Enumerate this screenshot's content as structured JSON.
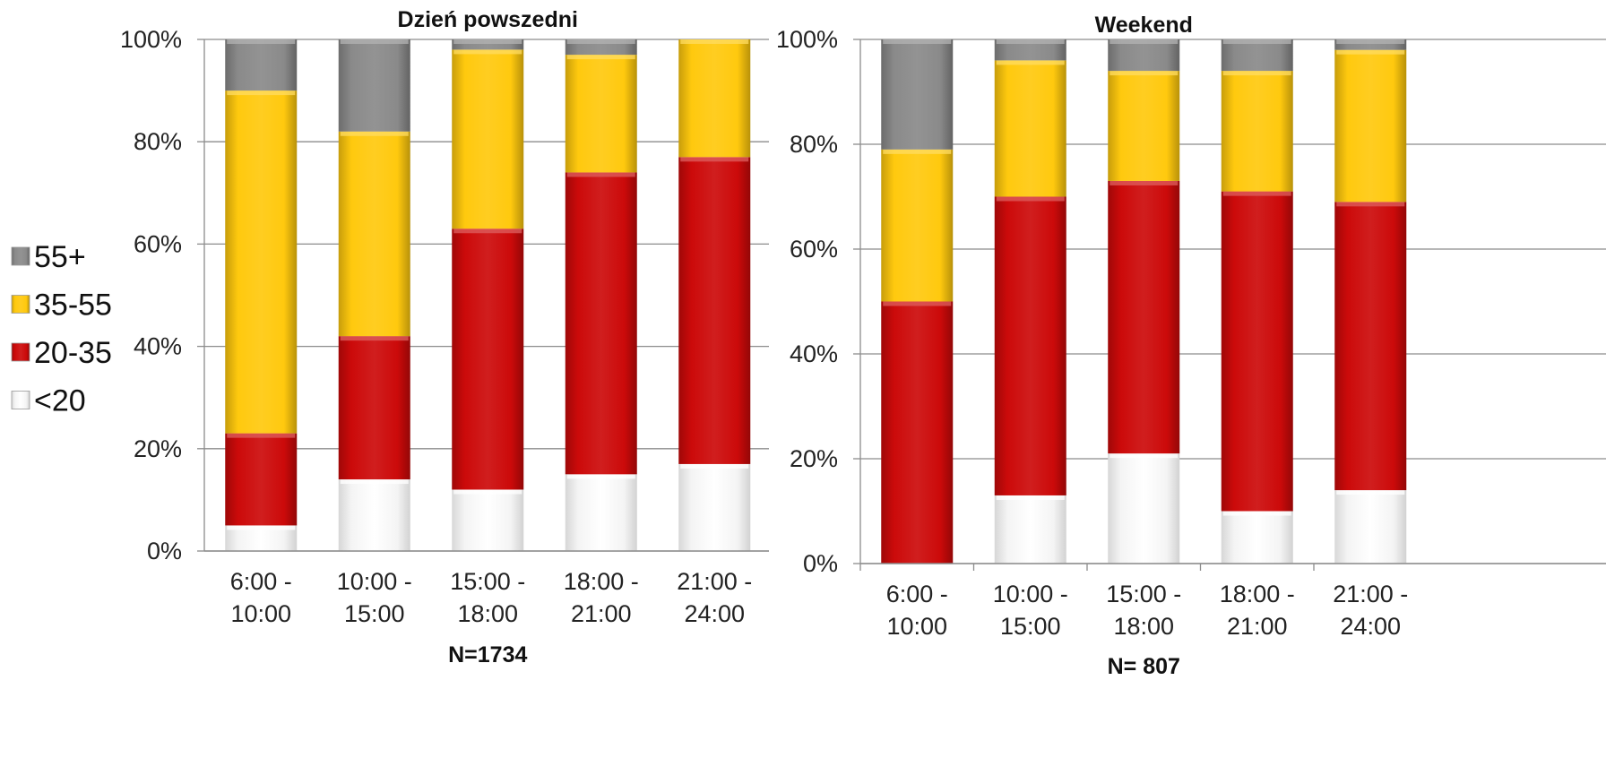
{
  "chart_data": [
    {
      "type": "bar",
      "stacked": true,
      "percent": true,
      "title": "Dzień powszedni",
      "footnote": "N=1734",
      "ylim": [
        0,
        100
      ],
      "y_ticks": [
        "0%",
        "20%",
        "40%",
        "60%",
        "80%",
        "100%"
      ],
      "categories": [
        [
          "6:00 -",
          "10:00"
        ],
        [
          "10:00 -",
          "15:00"
        ],
        [
          "15:00 -",
          "18:00"
        ],
        [
          "18:00 -",
          "21:00"
        ],
        [
          "21:00 -",
          "24:00"
        ]
      ],
      "series": [
        {
          "name": "<20",
          "values": [
            5,
            14,
            12,
            15,
            17
          ]
        },
        {
          "name": "20-35",
          "values": [
            18,
            28,
            51,
            59,
            60
          ]
        },
        {
          "name": "35-55",
          "values": [
            67,
            40,
            35,
            23,
            23
          ]
        },
        {
          "name": "55+",
          "values": [
            10,
            18,
            2,
            3,
            0
          ]
        }
      ]
    },
    {
      "type": "bar",
      "stacked": true,
      "percent": true,
      "title": "Weekend",
      "footnote": "N= 807",
      "ylim": [
        0,
        100
      ],
      "y_ticks": [
        "0%",
        "20%",
        "40%",
        "60%",
        "80%",
        "100%"
      ],
      "categories": [
        [
          "6:00 -",
          "10:00"
        ],
        [
          "10:00 -",
          "15:00"
        ],
        [
          "15:00 -",
          "18:00"
        ],
        [
          "18:00 -",
          "21:00"
        ],
        [
          "21:00 -",
          "24:00"
        ]
      ],
      "series": [
        {
          "name": "<20",
          "values": [
            0,
            13,
            21,
            10,
            14
          ]
        },
        {
          "name": "20-35",
          "values": [
            50,
            57,
            52,
            61,
            55
          ]
        },
        {
          "name": "35-55",
          "values": [
            29,
            26,
            21,
            23,
            29
          ]
        },
        {
          "name": "55+",
          "values": [
            21,
            4,
            6,
            6,
            2
          ]
        }
      ]
    }
  ],
  "legend": {
    "position": "left",
    "items": [
      {
        "label": "55+",
        "color": "#8a8a8a"
      },
      {
        "label": "35-55",
        "color": "#ffc90e"
      },
      {
        "label": "20-35",
        "color": "#cc0a0a"
      },
      {
        "label": "<20",
        "color": "#f4f4f4"
      }
    ]
  },
  "colors": {
    "<20": "#f4f4f4",
    "20-35": "#cc0a0a",
    "35-55": "#ffc90e",
    "55+": "#8a8a8a",
    "grid": "#8c8c8c"
  }
}
